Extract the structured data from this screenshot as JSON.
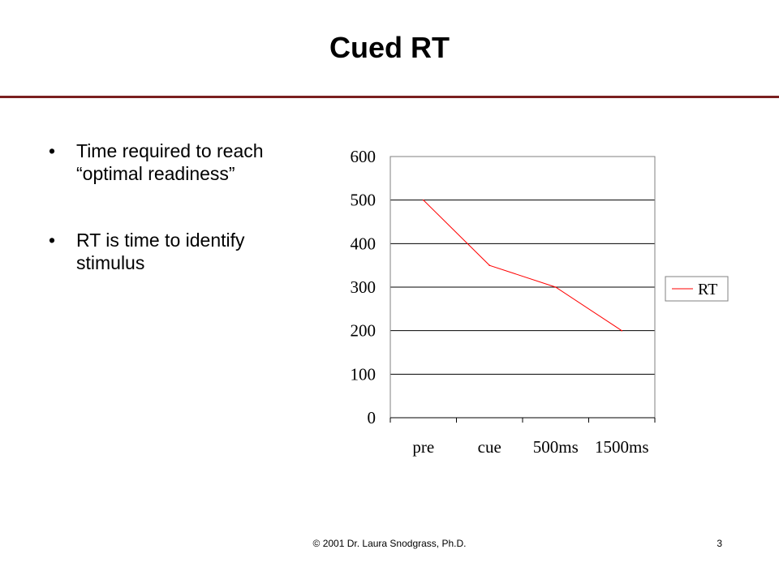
{
  "slide": {
    "title": "Cued RT",
    "bullets": [
      "Time required to reach “optimal readiness”",
      "RT is time to identify stimulus"
    ],
    "footer": "© 2001 Dr. Laura Snodgrass, Ph.D.",
    "page_number": "3",
    "bullet_glyph": "•",
    "accent_color": "#7a1f1f"
  },
  "chart_data": {
    "type": "line",
    "categories": [
      "pre",
      "cue",
      "500ms",
      "1500ms"
    ],
    "series": [
      {
        "name": "RT",
        "values": [
          500,
          350,
          300,
          200
        ],
        "color": "#ff0000"
      }
    ],
    "ylim": [
      0,
      600
    ],
    "yticks": [
      0,
      100,
      200,
      300,
      400,
      500,
      600
    ],
    "grid": true,
    "legend": "right",
    "title": "",
    "xlabel": "",
    "ylabel": ""
  }
}
